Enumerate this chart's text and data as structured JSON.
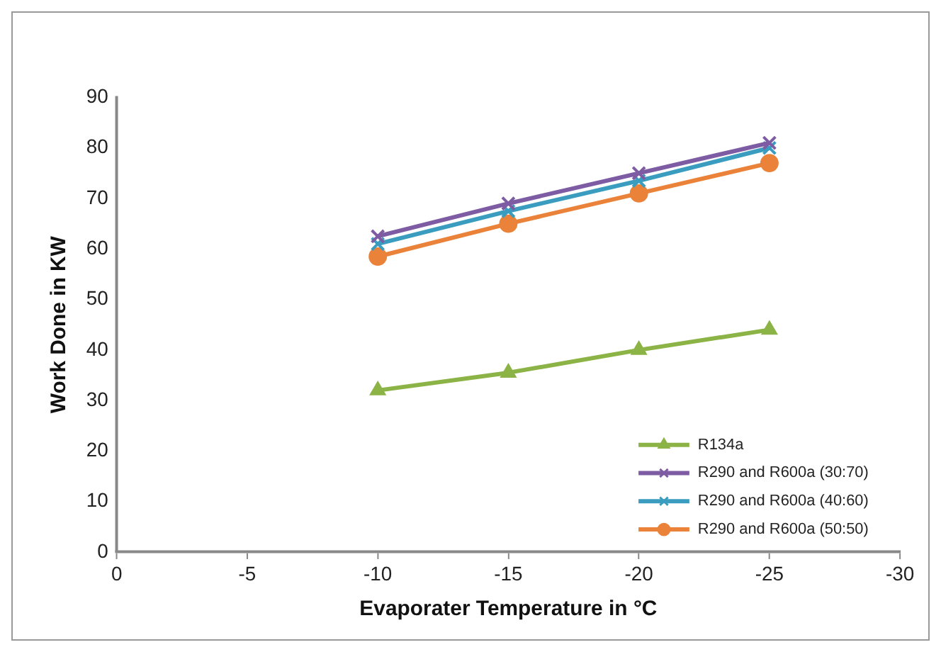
{
  "chart_data": {
    "type": "line",
    "xlabel": "Evaporater Temperature in °C",
    "ylabel": "Work Done in KW",
    "x": [
      -10,
      -15,
      -20,
      -25
    ],
    "series": [
      {
        "name": "R134a",
        "color": "#8cb346",
        "marker": "triangle",
        "values": [
          32,
          35.5,
          40,
          44
        ]
      },
      {
        "name": "R290 and R600a (30:70)",
        "color": "#7e5ca3",
        "marker": "cross",
        "values": [
          62.5,
          69,
          75,
          81
        ]
      },
      {
        "name": "R290 and R600a (40:60)",
        "color": "#3a9cbf",
        "marker": "cross",
        "values": [
          61,
          67.5,
          73.5,
          80
        ]
      },
      {
        "name": "R290 and R600a (50:50)",
        "color": "#ea8339",
        "marker": "circle",
        "values": [
          58.5,
          65,
          71,
          77
        ]
      }
    ],
    "xlim": [
      0,
      -30
    ],
    "xticks": [
      0,
      -5,
      -10,
      -15,
      -20,
      -25,
      -30
    ],
    "ylim": [
      0,
      90
    ],
    "yticks": [
      0,
      10,
      20,
      30,
      40,
      50,
      60,
      70,
      80,
      90
    ],
    "grid": false,
    "legend": "bottom right",
    "line_style": "solid"
  }
}
